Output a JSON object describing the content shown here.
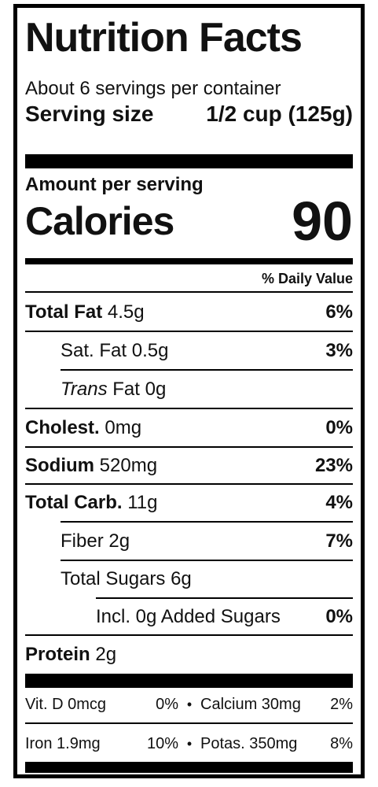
{
  "title": "Nutrition Facts",
  "servings_per_container": "About 6 servings per container",
  "serving_size": {
    "label": "Serving size",
    "value": "1/2 cup (125g)"
  },
  "amount_per_serving": "Amount per serving",
  "calories": {
    "label": "Calories",
    "value": "90"
  },
  "daily_value_header": "% Daily Value",
  "nutrients": {
    "total_fat": {
      "label": "Total Fat",
      "amount": "4.5g",
      "dv": "6%"
    },
    "sat_fat": {
      "label": "Sat. Fat",
      "amount": "0.5g",
      "dv": "3%"
    },
    "trans_fat": {
      "label_italic": "Trans",
      "label": "Fat",
      "amount": "0g"
    },
    "cholest": {
      "label": "Cholest.",
      "amount": "0mg",
      "dv": "0%"
    },
    "sodium": {
      "label": "Sodium",
      "amount": "520mg",
      "dv": "23%"
    },
    "total_carb": {
      "label": "Total Carb.",
      "amount": "11g",
      "dv": "4%"
    },
    "fiber": {
      "label": "Fiber",
      "amount": "2g",
      "dv": "7%"
    },
    "total_sugars": {
      "label": "Total Sugars",
      "amount": "6g"
    },
    "added_sugars": {
      "label": "Incl. 0g Added Sugars",
      "dv": "0%"
    },
    "protein": {
      "label": "Protein",
      "amount": "2g"
    }
  },
  "vitamins": [
    {
      "a": "Vit. D 0mcg",
      "ap": "0%",
      "b": "Calcium 30mg",
      "bp": "2%"
    },
    {
      "a": "Iron 1.9mg",
      "ap": "10%",
      "b": "Potas. 350mg",
      "bp": "8%"
    }
  ],
  "bullet": "•"
}
